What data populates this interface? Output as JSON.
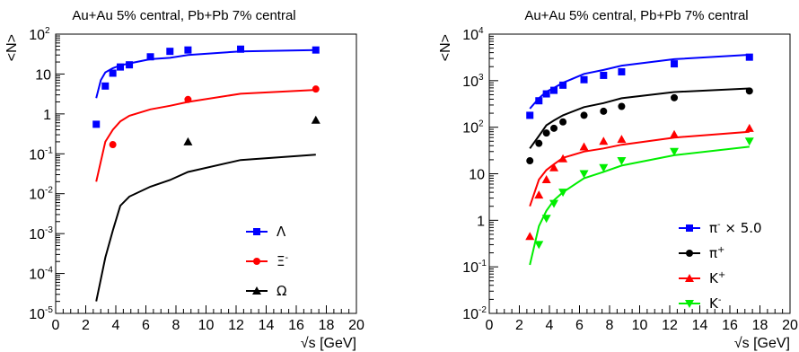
{
  "chart_data": [
    {
      "type": "scatter",
      "title": "Au+Au 5% central, Pb+Pb 7% central",
      "xlabel_root": "√s",
      "xlabel_unit": "[GeV]",
      "ylabel": "<N>",
      "xlim": [
        0,
        20
      ],
      "ylim": [
        1e-05,
        100
      ],
      "yscale": "log",
      "grid": false,
      "legend_position": "bottom-right",
      "x_ticks": [
        "0",
        "2",
        "4",
        "6",
        "8",
        "10",
        "12",
        "14",
        "16",
        "18",
        "20"
      ],
      "y_ticks": [
        {
          "value": 1e-05,
          "mantissa": "10",
          "exp": "-5"
        },
        {
          "value": 0.0001,
          "mantissa": "10",
          "exp": "-4"
        },
        {
          "value": 0.001,
          "mantissa": "10",
          "exp": "-3"
        },
        {
          "value": 0.01,
          "mantissa": "10",
          "exp": "-2"
        },
        {
          "value": 0.1,
          "mantissa": "10",
          "exp": "-1"
        },
        {
          "value": 1,
          "mantissa": "1",
          "exp": ""
        },
        {
          "value": 10,
          "mantissa": "10",
          "exp": ""
        },
        {
          "value": 100,
          "mantissa": "10",
          "exp": "2"
        }
      ],
      "series": [
        {
          "name": "Λ",
          "sup": "",
          "marker": "square",
          "color": "#0000ff",
          "points": [
            [
              2.7,
              0.55
            ],
            [
              3.3,
              5.0
            ],
            [
              3.8,
              10.5
            ],
            [
              4.3,
              15.0
            ],
            [
              4.9,
              17.0
            ],
            [
              6.3,
              27.0
            ],
            [
              7.6,
              37.0
            ],
            [
              8.8,
              40.0
            ],
            [
              12.3,
              42.0
            ],
            [
              17.3,
              40.0
            ]
          ],
          "line": [
            [
              2.7,
              2.5
            ],
            [
              3.0,
              7.0
            ],
            [
              3.3,
              11.0
            ],
            [
              3.8,
              14.0
            ],
            [
              4.3,
              16.5
            ],
            [
              4.9,
              18.5
            ],
            [
              6.3,
              23.5
            ],
            [
              7.6,
              25.5
            ],
            [
              8.8,
              30.0
            ],
            [
              12.3,
              37.0
            ],
            [
              17.3,
              40.0
            ]
          ]
        },
        {
          "name": "Ξ",
          "sup": "-",
          "marker": "circle",
          "color": "#ff0000",
          "points": [
            [
              3.8,
              0.17
            ],
            [
              8.8,
              2.3
            ],
            [
              17.3,
              4.2
            ]
          ],
          "line": [
            [
              2.7,
              0.02
            ],
            [
              3.3,
              0.2
            ],
            [
              3.8,
              0.4
            ],
            [
              4.3,
              0.65
            ],
            [
              4.9,
              0.9
            ],
            [
              6.3,
              1.3
            ],
            [
              7.6,
              1.6
            ],
            [
              8.8,
              2.0
            ],
            [
              12.3,
              3.2
            ],
            [
              17.3,
              4.0
            ]
          ]
        },
        {
          "name": "Ω",
          "sup": "",
          "marker": "triangle-up",
          "color": "#000000",
          "points": [
            [
              8.8,
              0.2
            ],
            [
              17.3,
              0.7
            ]
          ],
          "line": [
            [
              2.7,
              2e-05
            ],
            [
              3.3,
              0.00025
            ],
            [
              3.8,
              0.0012
            ],
            [
              4.3,
              0.005
            ],
            [
              4.9,
              0.0085
            ],
            [
              6.3,
              0.015
            ],
            [
              7.6,
              0.022
            ],
            [
              8.8,
              0.035
            ],
            [
              12.3,
              0.07
            ],
            [
              17.3,
              0.095
            ]
          ]
        }
      ]
    },
    {
      "type": "scatter",
      "title": "Au+Au 5% central, Pb+Pb 7% central",
      "xlabel_root": "√s",
      "xlabel_unit": "[GeV]",
      "ylabel": "<N>",
      "xlim": [
        0,
        20
      ],
      "ylim": [
        0.01,
        10000
      ],
      "yscale": "log",
      "grid": false,
      "legend_position": "bottom-right",
      "x_ticks": [
        "0",
        "2",
        "4",
        "6",
        "8",
        "10",
        "12",
        "14",
        "16",
        "18",
        "20"
      ],
      "y_ticks": [
        {
          "value": 0.01,
          "mantissa": "10",
          "exp": "-2"
        },
        {
          "value": 0.1,
          "mantissa": "10",
          "exp": "-1"
        },
        {
          "value": 1,
          "mantissa": "1",
          "exp": ""
        },
        {
          "value": 10,
          "mantissa": "10",
          "exp": ""
        },
        {
          "value": 100,
          "mantissa": "10",
          "exp": "2"
        },
        {
          "value": 1000,
          "mantissa": "10",
          "exp": "3"
        },
        {
          "value": 10000,
          "mantissa": "10",
          "exp": "4"
        }
      ],
      "series": [
        {
          "name": "π",
          "sup": "-",
          "suffix": " × 5.0",
          "marker": "square",
          "color": "#0000ff",
          "points": [
            [
              2.7,
              180
            ],
            [
              3.3,
              370
            ],
            [
              3.8,
              520
            ],
            [
              4.3,
              620
            ],
            [
              4.9,
              800
            ],
            [
              6.3,
              1050
            ],
            [
              7.6,
              1300
            ],
            [
              8.8,
              1550
            ],
            [
              12.3,
              2300
            ],
            [
              17.3,
              3200
            ]
          ],
          "line": [
            [
              2.7,
              250
            ],
            [
              3.3,
              420
            ],
            [
              3.8,
              580
            ],
            [
              4.3,
              700
            ],
            [
              4.9,
              900
            ],
            [
              6.3,
              1400
            ],
            [
              7.6,
              1700
            ],
            [
              8.8,
              2100
            ],
            [
              12.3,
              2900
            ],
            [
              17.3,
              3600
            ]
          ]
        },
        {
          "name": "π",
          "sup": "+",
          "suffix": "",
          "marker": "circle",
          "color": "#000000",
          "points": [
            [
              2.7,
              19
            ],
            [
              3.3,
              45
            ],
            [
              3.8,
              75
            ],
            [
              4.3,
              95
            ],
            [
              4.9,
              130
            ],
            [
              6.3,
              180
            ],
            [
              7.6,
              220
            ],
            [
              8.8,
              280
            ],
            [
              12.3,
              430
            ],
            [
              17.3,
              600
            ]
          ],
          "line": [
            [
              2.7,
              35
            ],
            [
              3.3,
              65
            ],
            [
              3.8,
              110
            ],
            [
              4.3,
              140
            ],
            [
              4.9,
              180
            ],
            [
              6.3,
              270
            ],
            [
              7.6,
              330
            ],
            [
              8.8,
              420
            ],
            [
              12.3,
              570
            ],
            [
              17.3,
              680
            ]
          ]
        },
        {
          "name": "K",
          "sup": "+",
          "suffix": "",
          "marker": "triangle-up",
          "color": "#ff0000",
          "points": [
            [
              2.7,
              0.45
            ],
            [
              3.3,
              3.5
            ],
            [
              3.8,
              7.5
            ],
            [
              4.3,
              13.5
            ],
            [
              4.9,
              21
            ],
            [
              6.3,
              38
            ],
            [
              7.6,
              50
            ],
            [
              8.8,
              55
            ],
            [
              12.3,
              70
            ],
            [
              17.3,
              95
            ]
          ],
          "line": [
            [
              2.7,
              2.0
            ],
            [
              3.3,
              7.5
            ],
            [
              3.8,
              12.0
            ],
            [
              4.3,
              16.0
            ],
            [
              4.9,
              22
            ],
            [
              6.3,
              30
            ],
            [
              7.6,
              35
            ],
            [
              8.8,
              42
            ],
            [
              12.3,
              60
            ],
            [
              17.3,
              80
            ]
          ]
        },
        {
          "name": "K",
          "sup": "-",
          "suffix": "",
          "marker": "triangle-down",
          "color": "#00ee00",
          "points": [
            [
              3.3,
              0.3
            ],
            [
              3.8,
              1.1
            ],
            [
              4.3,
              2.3
            ],
            [
              4.9,
              4.0
            ],
            [
              6.3,
              10
            ],
            [
              7.6,
              13.5
            ],
            [
              8.8,
              19
            ],
            [
              12.3,
              30
            ],
            [
              17.3,
              50
            ]
          ],
          "line": [
            [
              2.7,
              0.11
            ],
            [
              3.3,
              0.75
            ],
            [
              3.8,
              1.6
            ],
            [
              4.3,
              2.7
            ],
            [
              4.9,
              4.0
            ],
            [
              6.3,
              8.0
            ],
            [
              7.6,
              11.0
            ],
            [
              8.8,
              15.0
            ],
            [
              12.3,
              25.0
            ],
            [
              17.3,
              38.0
            ]
          ]
        }
      ]
    }
  ]
}
